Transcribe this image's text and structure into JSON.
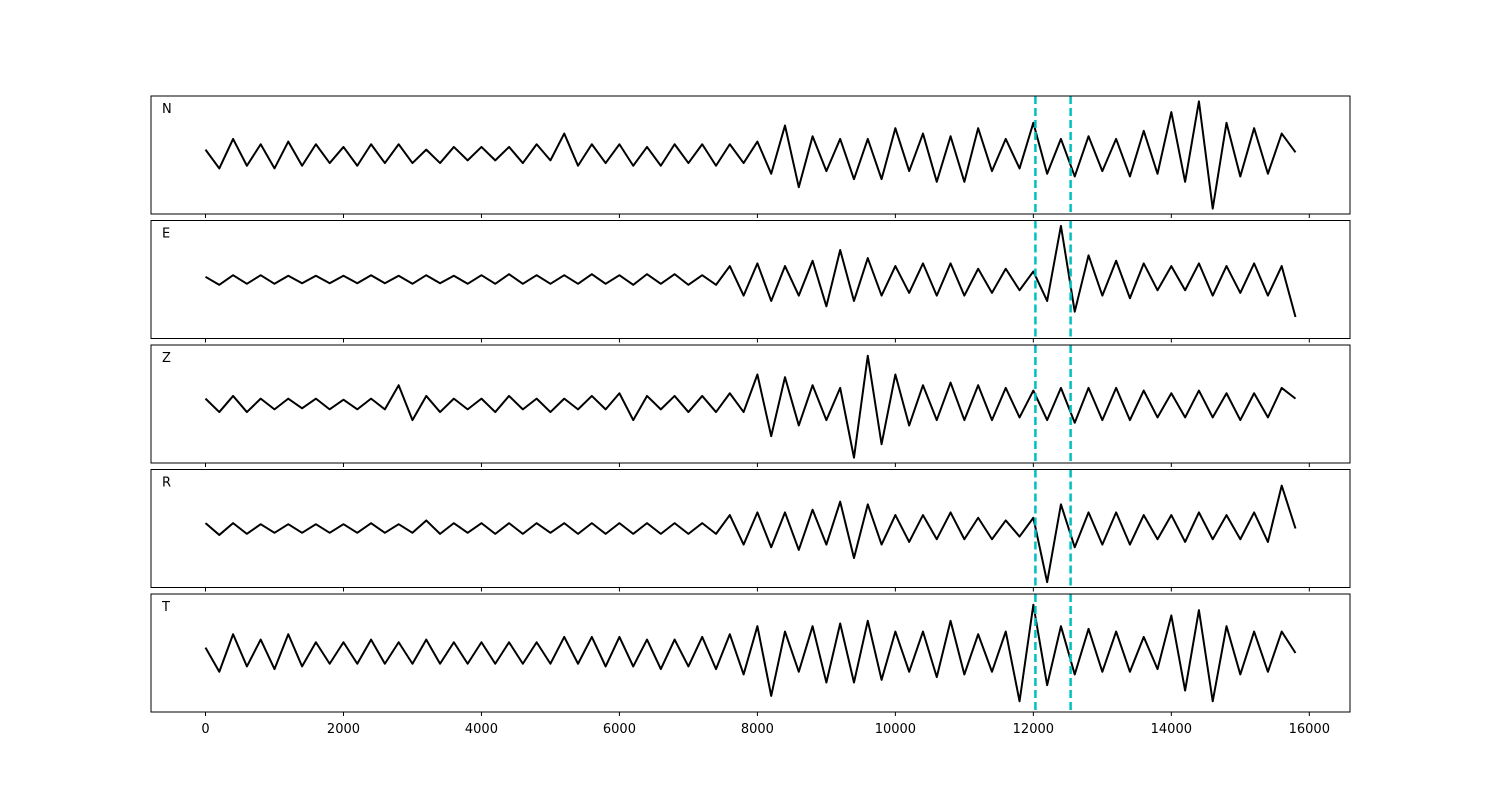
{
  "chart_data": [
    {
      "type": "line",
      "label": "N",
      "color": "#000000",
      "xlim": [
        -790,
        16590
      ],
      "ylim": [
        -1.1,
        1.1
      ],
      "xticks": [
        0,
        2000,
        4000,
        6000,
        8000,
        10000,
        12000,
        14000,
        16000
      ],
      "show_xtick_labels": false,
      "vlines": [
        12030,
        12540
      ],
      "vline_color": "#00bfbf",
      "x": [
        0,
        200,
        400,
        600,
        800,
        1000,
        1200,
        1400,
        1600,
        1800,
        2000,
        2200,
        2400,
        2600,
        2800,
        3000,
        3200,
        3400,
        3600,
        3800,
        4000,
        4200,
        4400,
        4600,
        4800,
        5000,
        5200,
        5400,
        5600,
        5800,
        6000,
        6200,
        6400,
        6600,
        6800,
        7000,
        7200,
        7400,
        7600,
        7800,
        8000,
        8200,
        8400,
        8600,
        8800,
        9000,
        9200,
        9400,
        9600,
        9800,
        10000,
        10200,
        10400,
        10600,
        10800,
        11000,
        11200,
        11400,
        11600,
        11800,
        12000,
        12200,
        12400,
        12600,
        12800,
        13000,
        13200,
        13400,
        13600,
        13800,
        14000,
        14200,
        14400,
        14600,
        14800,
        15000,
        15200,
        15400,
        15600,
        15800
      ],
      "values": [
        0.1,
        -0.25,
        0.3,
        -0.2,
        0.2,
        -0.25,
        0.25,
        -0.2,
        0.2,
        -0.15,
        0.15,
        -0.2,
        0.2,
        -0.15,
        0.2,
        -0.15,
        0.1,
        -0.15,
        0.15,
        -0.1,
        0.15,
        -0.1,
        0.15,
        -0.15,
        0.2,
        -0.1,
        0.4,
        -0.2,
        0.2,
        -0.15,
        0.2,
        -0.2,
        0.15,
        -0.2,
        0.2,
        -0.15,
        0.2,
        -0.2,
        0.2,
        -0.15,
        0.25,
        -0.35,
        0.55,
        -0.6,
        0.35,
        -0.3,
        0.3,
        -0.45,
        0.3,
        -0.45,
        0.5,
        -0.3,
        0.4,
        -0.5,
        0.35,
        -0.5,
        0.5,
        -0.3,
        0.3,
        -0.25,
        0.6,
        -0.35,
        0.3,
        -0.4,
        0.35,
        -0.3,
        0.3,
        -0.4,
        0.45,
        -0.35,
        0.8,
        -0.5,
        1.0,
        -1.0,
        0.6,
        -0.4,
        0.5,
        -0.35,
        0.4,
        0.05
      ]
    },
    {
      "type": "line",
      "label": "E",
      "color": "#000000",
      "xlim": [
        -790,
        16590
      ],
      "ylim": [
        -1.1,
        1.1
      ],
      "xticks": [
        0,
        2000,
        4000,
        6000,
        8000,
        10000,
        12000,
        14000,
        16000
      ],
      "show_xtick_labels": false,
      "vlines": [
        12030,
        12540
      ],
      "vline_color": "#00bfbf",
      "x": [
        0,
        200,
        400,
        600,
        800,
        1000,
        1200,
        1400,
        1600,
        1800,
        2000,
        2200,
        2400,
        2600,
        2800,
        3000,
        3200,
        3400,
        3600,
        3800,
        4000,
        4200,
        4400,
        4600,
        4800,
        5000,
        5200,
        5400,
        5600,
        5800,
        6000,
        6200,
        6400,
        6600,
        6800,
        7000,
        7200,
        7400,
        7600,
        7800,
        8000,
        8200,
        8400,
        8600,
        8800,
        9000,
        9200,
        9400,
        9600,
        9800,
        10000,
        10200,
        10400,
        10600,
        10800,
        11000,
        11200,
        11400,
        11600,
        11800,
        12000,
        12200,
        12400,
        12600,
        12800,
        13000,
        13200,
        13400,
        13600,
        13800,
        14000,
        14200,
        14400,
        14600,
        14800,
        15000,
        15200,
        15400,
        15600,
        15800
      ],
      "values": [
        0.05,
        -0.1,
        0.08,
        -0.08,
        0.08,
        -0.08,
        0.07,
        -0.07,
        0.07,
        -0.07,
        0.07,
        -0.07,
        0.08,
        -0.07,
        0.07,
        -0.08,
        0.08,
        -0.07,
        0.07,
        -0.08,
        0.08,
        -0.08,
        0.1,
        -0.08,
        0.08,
        -0.08,
        0.08,
        -0.08,
        0.1,
        -0.08,
        0.08,
        -0.1,
        0.1,
        -0.08,
        0.1,
        -0.1,
        0.08,
        -0.1,
        0.25,
        -0.3,
        0.3,
        -0.4,
        0.25,
        -0.3,
        0.35,
        -0.5,
        0.55,
        -0.4,
        0.4,
        -0.3,
        0.25,
        -0.25,
        0.3,
        -0.3,
        0.3,
        -0.3,
        0.2,
        -0.25,
        0.2,
        -0.2,
        0.15,
        -0.4,
        1.0,
        -0.6,
        0.45,
        -0.3,
        0.35,
        -0.35,
        0.3,
        -0.2,
        0.25,
        -0.2,
        0.3,
        -0.3,
        0.25,
        -0.25,
        0.3,
        -0.3,
        0.25,
        -0.7
      ]
    },
    {
      "type": "line",
      "label": "Z",
      "color": "#000000",
      "xlim": [
        -790,
        16590
      ],
      "ylim": [
        -1.1,
        1.1
      ],
      "xticks": [
        0,
        2000,
        4000,
        6000,
        8000,
        10000,
        12000,
        14000,
        16000
      ],
      "show_xtick_labels": false,
      "vlines": [
        12030,
        12540
      ],
      "vline_color": "#00bfbf",
      "x": [
        0,
        200,
        400,
        600,
        800,
        1000,
        1200,
        1400,
        1600,
        1800,
        2000,
        2200,
        2400,
        2600,
        2800,
        3000,
        3200,
        3400,
        3600,
        3800,
        4000,
        4200,
        4400,
        4600,
        4800,
        5000,
        5200,
        5400,
        5600,
        5800,
        6000,
        6200,
        6400,
        6600,
        6800,
        7000,
        7200,
        7400,
        7600,
        7800,
        8000,
        8200,
        8400,
        8600,
        8800,
        9000,
        9200,
        9400,
        9600,
        9800,
        10000,
        10200,
        10400,
        10600,
        10800,
        11000,
        11200,
        11400,
        11600,
        11800,
        12000,
        12200,
        12400,
        12600,
        12800,
        13000,
        13200,
        13400,
        13600,
        13800,
        14000,
        14200,
        14400,
        14600,
        14800,
        15000,
        15200,
        15400,
        15600,
        15800
      ],
      "values": [
        0.1,
        -0.15,
        0.15,
        -0.15,
        0.1,
        -0.1,
        0.1,
        -0.08,
        0.1,
        -0.1,
        0.08,
        -0.1,
        0.1,
        -0.1,
        0.35,
        -0.3,
        0.15,
        -0.15,
        0.1,
        -0.1,
        0.1,
        -0.15,
        0.15,
        -0.1,
        0.1,
        -0.15,
        0.1,
        -0.1,
        0.15,
        -0.1,
        0.2,
        -0.3,
        0.15,
        -0.1,
        0.15,
        -0.15,
        0.15,
        -0.15,
        0.2,
        -0.15,
        0.55,
        -0.6,
        0.5,
        -0.4,
        0.35,
        -0.3,
        0.3,
        -1.0,
        0.9,
        -0.75,
        0.55,
        -0.4,
        0.35,
        -0.3,
        0.4,
        -0.3,
        0.35,
        -0.3,
        0.3,
        -0.25,
        0.25,
        -0.3,
        0.3,
        -0.35,
        0.3,
        -0.3,
        0.3,
        -0.3,
        0.25,
        -0.25,
        0.2,
        -0.25,
        0.25,
        -0.25,
        0.2,
        -0.3,
        0.2,
        -0.25,
        0.3,
        0.1
      ]
    },
    {
      "type": "line",
      "label": "R",
      "color": "#000000",
      "xlim": [
        -790,
        16590
      ],
      "ylim": [
        -1.1,
        1.1
      ],
      "xticks": [
        0,
        2000,
        4000,
        6000,
        8000,
        10000,
        12000,
        14000,
        16000
      ],
      "show_xtick_labels": false,
      "vlines": [
        12030,
        12540
      ],
      "vline_color": "#00bfbf",
      "x": [
        0,
        200,
        400,
        600,
        800,
        1000,
        1200,
        1400,
        1600,
        1800,
        2000,
        2200,
        2400,
        2600,
        2800,
        3000,
        3200,
        3400,
        3600,
        3800,
        4000,
        4200,
        4400,
        4600,
        4800,
        5000,
        5200,
        5400,
        5600,
        5800,
        6000,
        6200,
        6400,
        6600,
        6800,
        7000,
        7200,
        7400,
        7600,
        7800,
        8000,
        8200,
        8400,
        8600,
        8800,
        9000,
        9200,
        9400,
        9600,
        9800,
        10000,
        10200,
        10400,
        10600,
        10800,
        11000,
        11200,
        11400,
        11600,
        11800,
        12000,
        12200,
        12400,
        12600,
        12800,
        13000,
        13200,
        13400,
        13600,
        13800,
        14000,
        14200,
        14400,
        14600,
        14800,
        15000,
        15200,
        15400,
        15600,
        15800
      ],
      "values": [
        0.1,
        -0.12,
        0.1,
        -0.1,
        0.08,
        -0.08,
        0.08,
        -0.08,
        0.08,
        -0.08,
        0.08,
        -0.08,
        0.1,
        -0.08,
        0.08,
        -0.08,
        0.15,
        -0.1,
        0.1,
        -0.08,
        0.1,
        -0.1,
        0.1,
        -0.1,
        0.1,
        -0.08,
        0.1,
        -0.1,
        0.1,
        -0.1,
        0.1,
        -0.1,
        0.1,
        -0.1,
        0.1,
        -0.1,
        0.1,
        -0.1,
        0.25,
        -0.3,
        0.3,
        -0.35,
        0.3,
        -0.4,
        0.35,
        -0.3,
        0.5,
        -0.55,
        0.45,
        -0.3,
        0.25,
        -0.25,
        0.25,
        -0.2,
        0.3,
        -0.2,
        0.2,
        -0.2,
        0.15,
        -0.15,
        0.2,
        -1.0,
        0.45,
        -0.35,
        0.3,
        -0.3,
        0.3,
        -0.3,
        0.25,
        -0.2,
        0.25,
        -0.25,
        0.3,
        -0.2,
        0.25,
        -0.2,
        0.3,
        -0.25,
        0.8,
        0.0
      ]
    },
    {
      "type": "line",
      "label": "T",
      "color": "#000000",
      "xlim": [
        -790,
        16590
      ],
      "ylim": [
        -1.1,
        1.1
      ],
      "xticks": [
        0,
        2000,
        4000,
        6000,
        8000,
        10000,
        12000,
        14000,
        16000
      ],
      "show_xtick_labels": true,
      "vlines": [
        12030,
        12540
      ],
      "vline_color": "#00bfbf",
      "x": [
        0,
        200,
        400,
        600,
        800,
        1000,
        1200,
        1400,
        1600,
        1800,
        2000,
        2200,
        2400,
        2600,
        2800,
        3000,
        3200,
        3400,
        3600,
        3800,
        4000,
        4200,
        4400,
        4600,
        4800,
        5000,
        5200,
        5400,
        5600,
        5800,
        6000,
        6200,
        6400,
        6600,
        6800,
        7000,
        7200,
        7400,
        7600,
        7800,
        8000,
        8200,
        8400,
        8600,
        8800,
        9000,
        9200,
        9400,
        9600,
        9800,
        10000,
        10200,
        10400,
        10600,
        10800,
        11000,
        11200,
        11400,
        11600,
        11800,
        12000,
        12200,
        12400,
        12600,
        12800,
        13000,
        13200,
        13400,
        13600,
        13800,
        14000,
        14200,
        14400,
        14600,
        14800,
        15000,
        15200,
        15400,
        15600,
        15800
      ],
      "values": [
        0.1,
        -0.35,
        0.35,
        -0.25,
        0.25,
        -0.3,
        0.35,
        -0.25,
        0.2,
        -0.2,
        0.2,
        -0.2,
        0.25,
        -0.2,
        0.2,
        -0.2,
        0.25,
        -0.2,
        0.2,
        -0.2,
        0.2,
        -0.2,
        0.2,
        -0.2,
        0.2,
        -0.2,
        0.3,
        -0.2,
        0.3,
        -0.25,
        0.3,
        -0.25,
        0.25,
        -0.3,
        0.25,
        -0.25,
        0.3,
        -0.3,
        0.35,
        -0.4,
        0.5,
        -0.8,
        0.4,
        -0.35,
        0.5,
        -0.55,
        0.55,
        -0.55,
        0.6,
        -0.5,
        0.4,
        -0.35,
        0.4,
        -0.45,
        0.6,
        -0.4,
        0.35,
        -0.35,
        0.4,
        -0.9,
        0.9,
        -0.6,
        0.5,
        -0.4,
        0.45,
        -0.35,
        0.4,
        -0.35,
        0.3,
        -0.3,
        0.7,
        -0.7,
        0.8,
        -0.9,
        0.5,
        -0.4,
        0.4,
        -0.35,
        0.4,
        0.0
      ]
    }
  ]
}
